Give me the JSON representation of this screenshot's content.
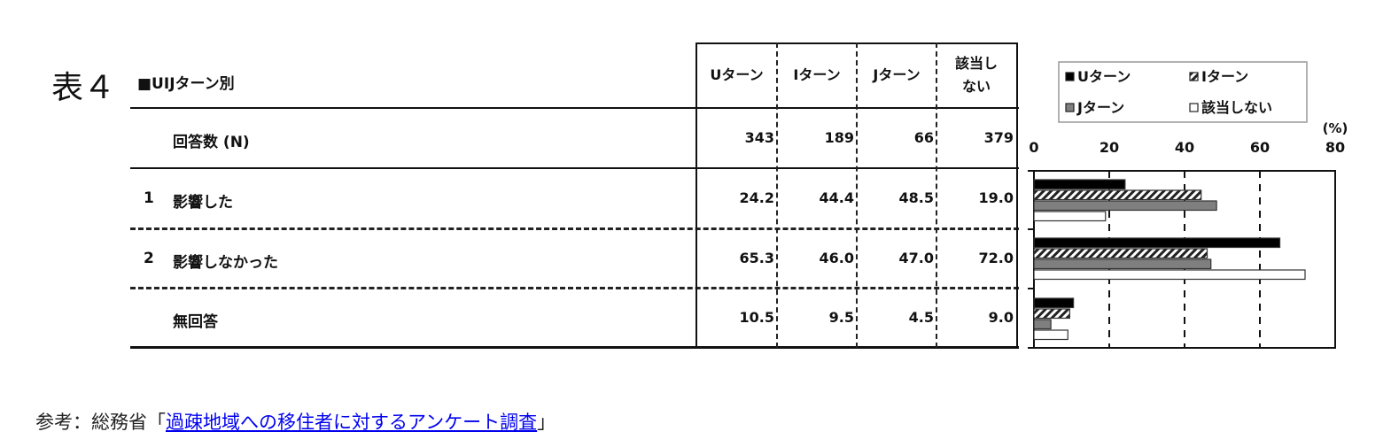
{
  "table": {
    "title": "表４",
    "subtitle": "■UIJターン別",
    "columns": [
      "Uターン",
      "Iターン",
      "Jターン",
      "該当し\nない"
    ],
    "rows": [
      {
        "num": "",
        "label": "回答数 (N)",
        "values": [
          "343",
          "189",
          "66",
          "379"
        ]
      },
      {
        "num": "1",
        "label": "影響した",
        "values": [
          "24.2",
          "44.4",
          "48.5",
          "19.0"
        ]
      },
      {
        "num": "2",
        "label": "影響しなかった",
        "values": [
          "65.3",
          "46.0",
          "47.0",
          "72.0"
        ]
      },
      {
        "num": "",
        "label": "無回答",
        "values": [
          "10.5",
          "9.5",
          "4.5",
          "9.0"
        ]
      }
    ]
  },
  "chart_data": {
    "type": "bar",
    "orientation": "horizontal",
    "categories": [
      "影響した",
      "影響しなかった",
      "無回答"
    ],
    "series": [
      {
        "name": "Uターン",
        "values": [
          24.2,
          65.3,
          10.5
        ],
        "fill": "#000000",
        "pattern": "solid"
      },
      {
        "name": "Iターン",
        "values": [
          44.4,
          46.0,
          9.5
        ],
        "fill": "#ffffff",
        "pattern": "diagonal-hatch"
      },
      {
        "name": "Jターン",
        "values": [
          48.5,
          47.0,
          4.5
        ],
        "fill": "#7f7f7f",
        "pattern": "solid"
      },
      {
        "name": "該当しない",
        "values": [
          19.0,
          72.0,
          9.0
        ],
        "fill": "#ffffff",
        "pattern": "solid"
      }
    ],
    "unit_label": "(%)",
    "xlim": [
      0,
      80
    ],
    "xticks": [
      "0",
      "20",
      "40",
      "60",
      "80"
    ],
    "grid": "vertical dashed",
    "legend": "top"
  },
  "footer": {
    "prefix": "参考：総務省「",
    "link": "過疎地域への移住者に対するアンケート調査",
    "suffix": "」"
  }
}
